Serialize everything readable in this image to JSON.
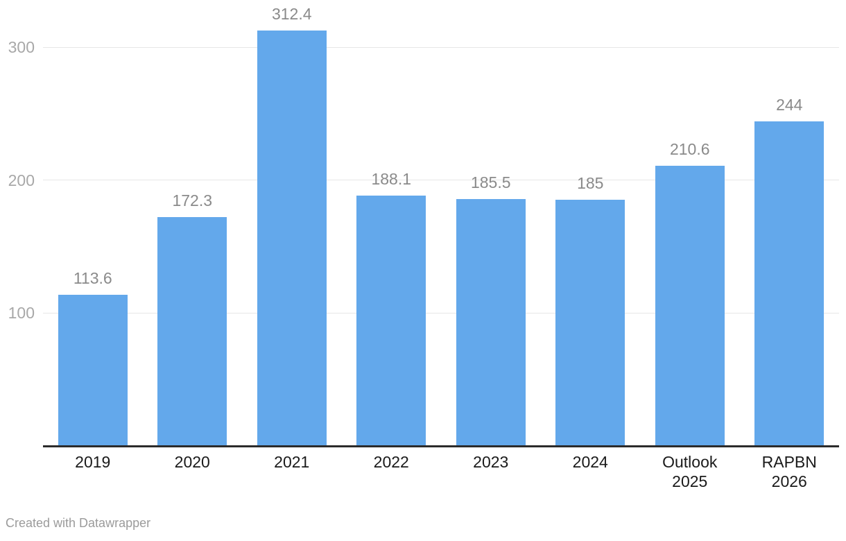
{
  "chart_data": {
    "type": "bar",
    "categories": [
      "2019",
      "2020",
      "2021",
      "2022",
      "2023",
      "2024",
      "Outlook 2025",
      "RAPBN 2026"
    ],
    "category_lines": [
      [
        "2019"
      ],
      [
        "2020"
      ],
      [
        "2021"
      ],
      [
        "2022"
      ],
      [
        "2023"
      ],
      [
        "2024"
      ],
      [
        "Outlook",
        "2025"
      ],
      [
        "RAPBN",
        "2026"
      ]
    ],
    "values": [
      113.6,
      172.3,
      312.4,
      188.1,
      185.5,
      185,
      210.6,
      244
    ],
    "value_labels": [
      "113.6",
      "172.3",
      "312.4",
      "188.1",
      "185.5",
      "185",
      "210.6",
      "244"
    ],
    "title": "",
    "xlabel": "",
    "ylabel": "",
    "ylim": [
      0,
      335
    ],
    "yticks": [
      100,
      200,
      300
    ],
    "grid": true,
    "legend": "none",
    "bar_color": "#63a8eb"
  },
  "colors": {
    "bar": "#63a8eb",
    "gridline": "#e6e6e6",
    "y_tick_text": "#a8a8a8",
    "value_label_text": "#8a8a8a",
    "x_tick_text": "#1a1a1a",
    "axis_line": "#2b2b2b",
    "credit_text": "#9b9b9b",
    "background": "#ffffff"
  },
  "footer": {
    "credit": "Created with Datawrapper"
  }
}
